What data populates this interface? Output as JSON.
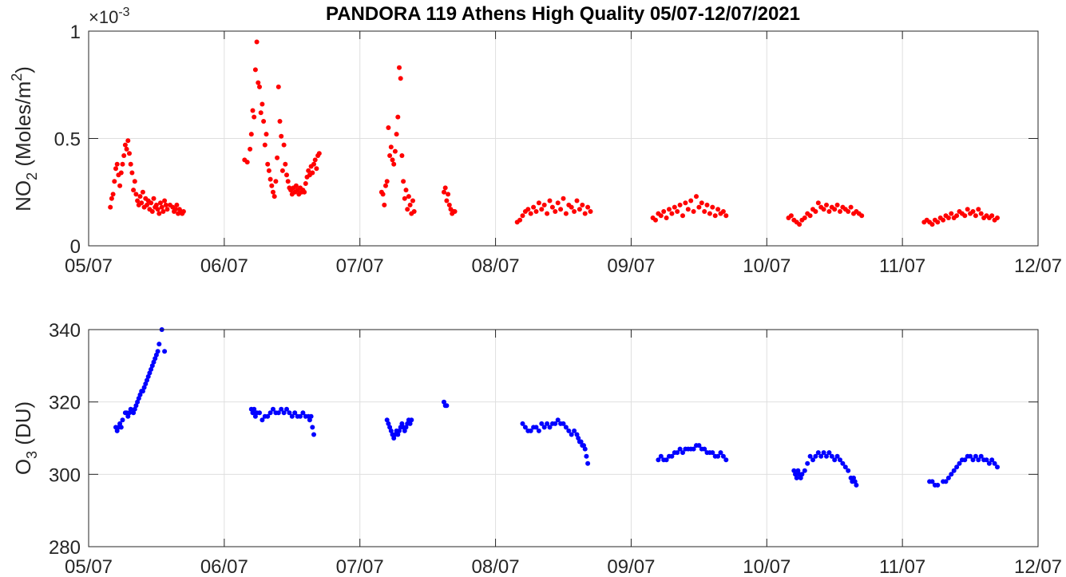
{
  "title": "PANDORA 119 Athens High Quality 05/07-12/07/2021",
  "chart_data": [
    {
      "type": "scatter",
      "panel": "top",
      "ylabel_main": "NO",
      "ylabel_sub": "2",
      "ylabel_rest": " (Moles/m",
      "ylabel_sup": "2",
      "ylabel_end": ")",
      "exponent_prefix": "×10",
      "exponent_power": "-3",
      "ylim": [
        0,
        1
      ],
      "y_ticks": [
        0,
        0.5,
        1
      ],
      "y_tick_labels": [
        "0",
        "0.5",
        "1"
      ],
      "xlim": [
        0,
        7
      ],
      "x_ticks": [
        0,
        1,
        2,
        3,
        4,
        5,
        6,
        7
      ],
      "x_tick_labels": [
        "05/07",
        "06/07",
        "07/07",
        "08/07",
        "09/07",
        "10/07",
        "11/07",
        "12/07"
      ],
      "grid": true,
      "marker_color": "#ff0000",
      "x_unit": "days from 05/07 (tick spacing = 1 day)",
      "series": [
        {
          "x": [
            0.16,
            0.17,
            0.18,
            0.19,
            0.2,
            0.21,
            0.22,
            0.23,
            0.24,
            0.25,
            0.26,
            0.27,
            0.28,
            0.29,
            0.3,
            0.31,
            0.32,
            0.33,
            0.34,
            0.35,
            0.36,
            0.37,
            0.38,
            0.39,
            0.4,
            0.41,
            0.42,
            0.43,
            0.44,
            0.45,
            0.46,
            0.47,
            0.48,
            0.49,
            0.5,
            0.51,
            0.52,
            0.53,
            0.54,
            0.55,
            0.56,
            0.57,
            0.58,
            0.6,
            0.62,
            0.63,
            0.64,
            0.65,
            0.66,
            0.67,
            0.68,
            0.69,
            0.7
          ],
          "y": [
            0.18,
            0.22,
            0.24,
            0.3,
            0.36,
            0.38,
            0.33,
            0.28,
            0.34,
            0.38,
            0.42,
            0.47,
            0.45,
            0.49,
            0.43,
            0.38,
            0.34,
            0.26,
            0.3,
            0.24,
            0.21,
            0.19,
            0.23,
            0.2,
            0.25,
            0.18,
            0.22,
            0.19,
            0.21,
            0.17,
            0.2,
            0.16,
            0.22,
            0.18,
            0.19,
            0.17,
            0.15,
            0.2,
            0.18,
            0.16,
            0.21,
            0.19,
            0.17,
            0.19,
            0.18,
            0.16,
            0.17,
            0.19,
            0.15,
            0.17,
            0.16,
            0.15,
            0.16
          ]
        },
        {
          "x": [
            1.15,
            1.17,
            1.19,
            1.2,
            1.21,
            1.22,
            1.23,
            1.24,
            1.25,
            1.26,
            1.27,
            1.28,
            1.29,
            1.3,
            1.31,
            1.32,
            1.33,
            1.34,
            1.35,
            1.36,
            1.37,
            1.38,
            1.39,
            1.4,
            1.41,
            1.42,
            1.43,
            1.44,
            1.45,
            1.46,
            1.47,
            1.48,
            1.49,
            1.5,
            1.51,
            1.52,
            1.53,
            1.54,
            1.55,
            1.56,
            1.57,
            1.58,
            1.59,
            1.6,
            1.61,
            1.62,
            1.63,
            1.64,
            1.65,
            1.66,
            1.67,
            1.68,
            1.69,
            1.7
          ],
          "y": [
            0.4,
            0.39,
            0.45,
            0.52,
            0.63,
            0.6,
            0.82,
            0.95,
            0.76,
            0.74,
            0.62,
            0.66,
            0.58,
            0.47,
            0.52,
            0.38,
            0.35,
            0.31,
            0.28,
            0.25,
            0.23,
            0.3,
            0.41,
            0.74,
            0.58,
            0.51,
            0.35,
            0.47,
            0.38,
            0.33,
            0.3,
            0.27,
            0.26,
            0.24,
            0.27,
            0.25,
            0.28,
            0.26,
            0.24,
            0.27,
            0.25,
            0.26,
            0.25,
            0.29,
            0.32,
            0.35,
            0.33,
            0.37,
            0.34,
            0.38,
            0.4,
            0.36,
            0.42,
            0.43
          ]
        },
        {
          "x": [
            2.16,
            2.17,
            2.18,
            2.19,
            2.2,
            2.21,
            2.22,
            2.23,
            2.24,
            2.25,
            2.26,
            2.27,
            2.28,
            2.29,
            2.3,
            2.31,
            2.32,
            2.33,
            2.34,
            2.35,
            2.36,
            2.37,
            2.38,
            2.39,
            2.4,
            2.62,
            2.63,
            2.64,
            2.65,
            2.66,
            2.67,
            2.68,
            2.69,
            2.7
          ],
          "y": [
            0.25,
            0.24,
            0.19,
            0.28,
            0.3,
            0.55,
            0.42,
            0.46,
            0.4,
            0.38,
            0.44,
            0.52,
            0.6,
            0.83,
            0.78,
            0.42,
            0.3,
            0.22,
            0.26,
            0.17,
            0.23,
            0.19,
            0.15,
            0.21,
            0.16,
            0.25,
            0.27,
            0.21,
            0.24,
            0.19,
            0.17,
            0.15,
            0.16,
            0.16
          ]
        },
        {
          "x": [
            3.16,
            3.18,
            3.2,
            3.22,
            3.24,
            3.26,
            3.28,
            3.3,
            3.32,
            3.34,
            3.36,
            3.38,
            3.4,
            3.42,
            3.44,
            3.46,
            3.48,
            3.5,
            3.52,
            3.54,
            3.56,
            3.58,
            3.6,
            3.62,
            3.64,
            3.66,
            3.68,
            3.7
          ],
          "y": [
            0.11,
            0.12,
            0.14,
            0.16,
            0.17,
            0.15,
            0.18,
            0.16,
            0.2,
            0.17,
            0.19,
            0.15,
            0.21,
            0.18,
            0.16,
            0.2,
            0.17,
            0.22,
            0.15,
            0.19,
            0.18,
            0.16,
            0.21,
            0.17,
            0.19,
            0.15,
            0.18,
            0.16
          ]
        },
        {
          "x": [
            4.16,
            4.18,
            4.2,
            4.22,
            4.24,
            4.26,
            4.28,
            4.3,
            4.32,
            4.34,
            4.36,
            4.38,
            4.4,
            4.42,
            4.44,
            4.46,
            4.48,
            4.5,
            4.52,
            4.54,
            4.56,
            4.58,
            4.6,
            4.62,
            4.64,
            4.66,
            4.68,
            4.7
          ],
          "y": [
            0.13,
            0.12,
            0.15,
            0.14,
            0.16,
            0.13,
            0.17,
            0.15,
            0.18,
            0.16,
            0.19,
            0.14,
            0.2,
            0.17,
            0.21,
            0.16,
            0.23,
            0.18,
            0.2,
            0.16,
            0.19,
            0.15,
            0.18,
            0.14,
            0.17,
            0.15,
            0.16,
            0.14
          ]
        },
        {
          "x": [
            5.16,
            5.18,
            5.2,
            5.22,
            5.24,
            5.26,
            5.28,
            5.3,
            5.32,
            5.34,
            5.36,
            5.38,
            5.4,
            5.42,
            5.44,
            5.46,
            5.48,
            5.5,
            5.52,
            5.54,
            5.56,
            5.58,
            5.6,
            5.62,
            5.64,
            5.66,
            5.68,
            5.7
          ],
          "y": [
            0.13,
            0.14,
            0.12,
            0.11,
            0.1,
            0.12,
            0.13,
            0.15,
            0.14,
            0.17,
            0.16,
            0.2,
            0.18,
            0.17,
            0.19,
            0.16,
            0.18,
            0.17,
            0.19,
            0.16,
            0.18,
            0.17,
            0.16,
            0.18,
            0.15,
            0.16,
            0.15,
            0.14
          ]
        },
        {
          "x": [
            6.16,
            6.18,
            6.2,
            6.22,
            6.24,
            6.26,
            6.28,
            6.3,
            6.32,
            6.34,
            6.36,
            6.38,
            6.4,
            6.42,
            6.44,
            6.46,
            6.48,
            6.5,
            6.52,
            6.54,
            6.56,
            6.58,
            6.6,
            6.62,
            6.64,
            6.66,
            6.68,
            6.7
          ],
          "y": [
            0.11,
            0.12,
            0.11,
            0.1,
            0.12,
            0.11,
            0.13,
            0.12,
            0.14,
            0.13,
            0.15,
            0.13,
            0.14,
            0.16,
            0.15,
            0.14,
            0.17,
            0.15,
            0.16,
            0.14,
            0.17,
            0.15,
            0.13,
            0.14,
            0.13,
            0.14,
            0.12,
            0.13
          ]
        }
      ]
    },
    {
      "type": "scatter",
      "panel": "bottom",
      "ylabel_main": "O",
      "ylabel_sub": "3",
      "ylabel_rest": " (DU)",
      "ylim": [
        280,
        340
      ],
      "y_ticks": [
        280,
        300,
        320,
        340
      ],
      "y_tick_labels": [
        "280",
        "300",
        "320",
        "340"
      ],
      "xlim": [
        0,
        7
      ],
      "x_ticks": [
        0,
        1,
        2,
        3,
        4,
        5,
        6,
        7
      ],
      "x_tick_labels": [
        "05/07",
        "06/07",
        "07/07",
        "08/07",
        "09/07",
        "10/07",
        "11/07",
        "12/07"
      ],
      "grid": true,
      "marker_color": "#0000ff",
      "series": [
        {
          "x": [
            0.2,
            0.21,
            0.22,
            0.23,
            0.24,
            0.25,
            0.27,
            0.28,
            0.29,
            0.3,
            0.31,
            0.33,
            0.34,
            0.35,
            0.36,
            0.37,
            0.38,
            0.39,
            0.4,
            0.41,
            0.42,
            0.43,
            0.44,
            0.45,
            0.46,
            0.47,
            0.48,
            0.49,
            0.5,
            0.51,
            0.52,
            0.54,
            0.56
          ],
          "y": [
            313,
            312,
            313,
            314,
            313,
            315,
            317,
            317,
            316,
            317,
            318,
            317,
            318,
            319,
            320,
            321,
            322,
            323,
            323,
            324,
            325,
            326,
            327,
            328,
            329,
            330,
            331,
            332,
            333,
            334,
            336,
            340,
            334
          ]
        },
        {
          "x": [
            1.2,
            1.21,
            1.22,
            1.23,
            1.24,
            1.26,
            1.28,
            1.3,
            1.32,
            1.34,
            1.36,
            1.38,
            1.4,
            1.42,
            1.44,
            1.46,
            1.48,
            1.5,
            1.52,
            1.54,
            1.56,
            1.58,
            1.6,
            1.62,
            1.63,
            1.64,
            1.65,
            1.66
          ],
          "y": [
            318,
            317,
            318,
            316,
            317,
            317,
            315,
            316,
            316,
            317,
            318,
            317,
            317,
            318,
            317,
            318,
            317,
            316,
            317,
            316,
            316,
            317,
            316,
            316,
            315,
            316,
            313,
            311
          ]
        },
        {
          "x": [
            2.2,
            2.21,
            2.22,
            2.23,
            2.24,
            2.25,
            2.26,
            2.27,
            2.28,
            2.29,
            2.3,
            2.31,
            2.32,
            2.33,
            2.34,
            2.35,
            2.36,
            2.37,
            2.38,
            2.62,
            2.63,
            2.64
          ],
          "y": [
            315,
            314,
            313,
            312,
            311,
            310,
            311,
            312,
            311,
            312,
            313,
            314,
            313,
            312,
            313,
            314,
            315,
            314,
            315,
            320,
            319,
            319
          ]
        },
        {
          "x": [
            3.2,
            3.22,
            3.24,
            3.26,
            3.28,
            3.3,
            3.32,
            3.34,
            3.36,
            3.38,
            3.4,
            3.42,
            3.44,
            3.46,
            3.48,
            3.5,
            3.52,
            3.54,
            3.56,
            3.58,
            3.6,
            3.61,
            3.62,
            3.63,
            3.64,
            3.65,
            3.66,
            3.67,
            3.68
          ],
          "y": [
            314,
            313,
            312,
            312,
            313,
            313,
            312,
            314,
            313,
            314,
            313,
            314,
            314,
            315,
            314,
            314,
            313,
            312,
            311,
            312,
            311,
            310,
            309,
            309,
            308,
            308,
            307,
            305,
            303
          ]
        },
        {
          "x": [
            4.2,
            4.22,
            4.24,
            4.26,
            4.28,
            4.3,
            4.32,
            4.34,
            4.36,
            4.38,
            4.4,
            4.42,
            4.44,
            4.46,
            4.48,
            4.5,
            4.52,
            4.54,
            4.56,
            4.58,
            4.6,
            4.62,
            4.64,
            4.66,
            4.68,
            4.7
          ],
          "y": [
            304,
            305,
            304,
            304,
            305,
            305,
            306,
            306,
            307,
            306,
            307,
            307,
            307,
            307,
            308,
            308,
            307,
            307,
            306,
            306,
            306,
            305,
            305,
            306,
            305,
            304
          ]
        },
        {
          "x": [
            5.2,
            5.21,
            5.22,
            5.23,
            5.24,
            5.25,
            5.26,
            5.28,
            5.3,
            5.32,
            5.34,
            5.36,
            5.38,
            5.4,
            5.42,
            5.44,
            5.46,
            5.48,
            5.5,
            5.52,
            5.54,
            5.56,
            5.58,
            5.6,
            5.62,
            5.63,
            5.64,
            5.65,
            5.66
          ],
          "y": [
            301,
            300,
            299,
            301,
            300,
            299,
            300,
            301,
            303,
            305,
            304,
            305,
            306,
            305,
            306,
            305,
            306,
            305,
            304,
            305,
            304,
            303,
            302,
            301,
            299,
            298,
            299,
            298,
            297
          ]
        },
        {
          "x": [
            6.2,
            6.22,
            6.24,
            6.26,
            6.3,
            6.32,
            6.34,
            6.36,
            6.38,
            6.4,
            6.42,
            6.44,
            6.46,
            6.48,
            6.5,
            6.52,
            6.54,
            6.56,
            6.58,
            6.6,
            6.62,
            6.64,
            6.66,
            6.68,
            6.7
          ],
          "y": [
            298,
            298,
            297,
            297,
            298,
            298,
            299,
            300,
            301,
            302,
            303,
            304,
            304,
            305,
            305,
            304,
            305,
            304,
            305,
            304,
            304,
            303,
            304,
            303,
            302
          ]
        }
      ]
    }
  ]
}
